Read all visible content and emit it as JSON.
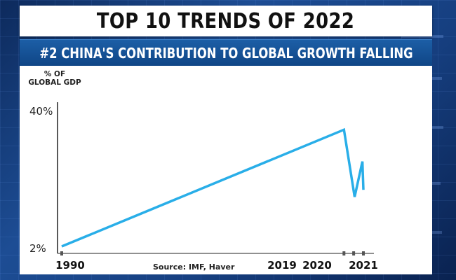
{
  "header": {
    "title": "TOP 10 TRENDS OF 2022",
    "subtitle": "#2  CHINA'S CONTRIBUTION TO GLOBAL GROWTH FALLING"
  },
  "source": "Source: IMF, Haver",
  "colors": {
    "line": "#29aee8",
    "title_bg": "#ffffff",
    "subtitle_bg": "#15549a",
    "background": "#1d4d94"
  },
  "chart_data": {
    "type": "line",
    "title": "",
    "ylabel": "% OF GLOBAL GDP",
    "xlabel": "",
    "x_tick_labels": [
      "1990",
      "2019",
      "2020",
      "2021"
    ],
    "y_tick_labels": [
      "40%",
      "2%"
    ],
    "ylim": [
      2,
      40
    ],
    "xlim": [
      1990,
      2021
    ],
    "grid": false,
    "series": [
      {
        "x": [
          1990,
          2019,
          2020.1,
          2020.9,
          2021
        ],
        "y": [
          2,
          35,
          16,
          26,
          18
        ]
      }
    ]
  }
}
